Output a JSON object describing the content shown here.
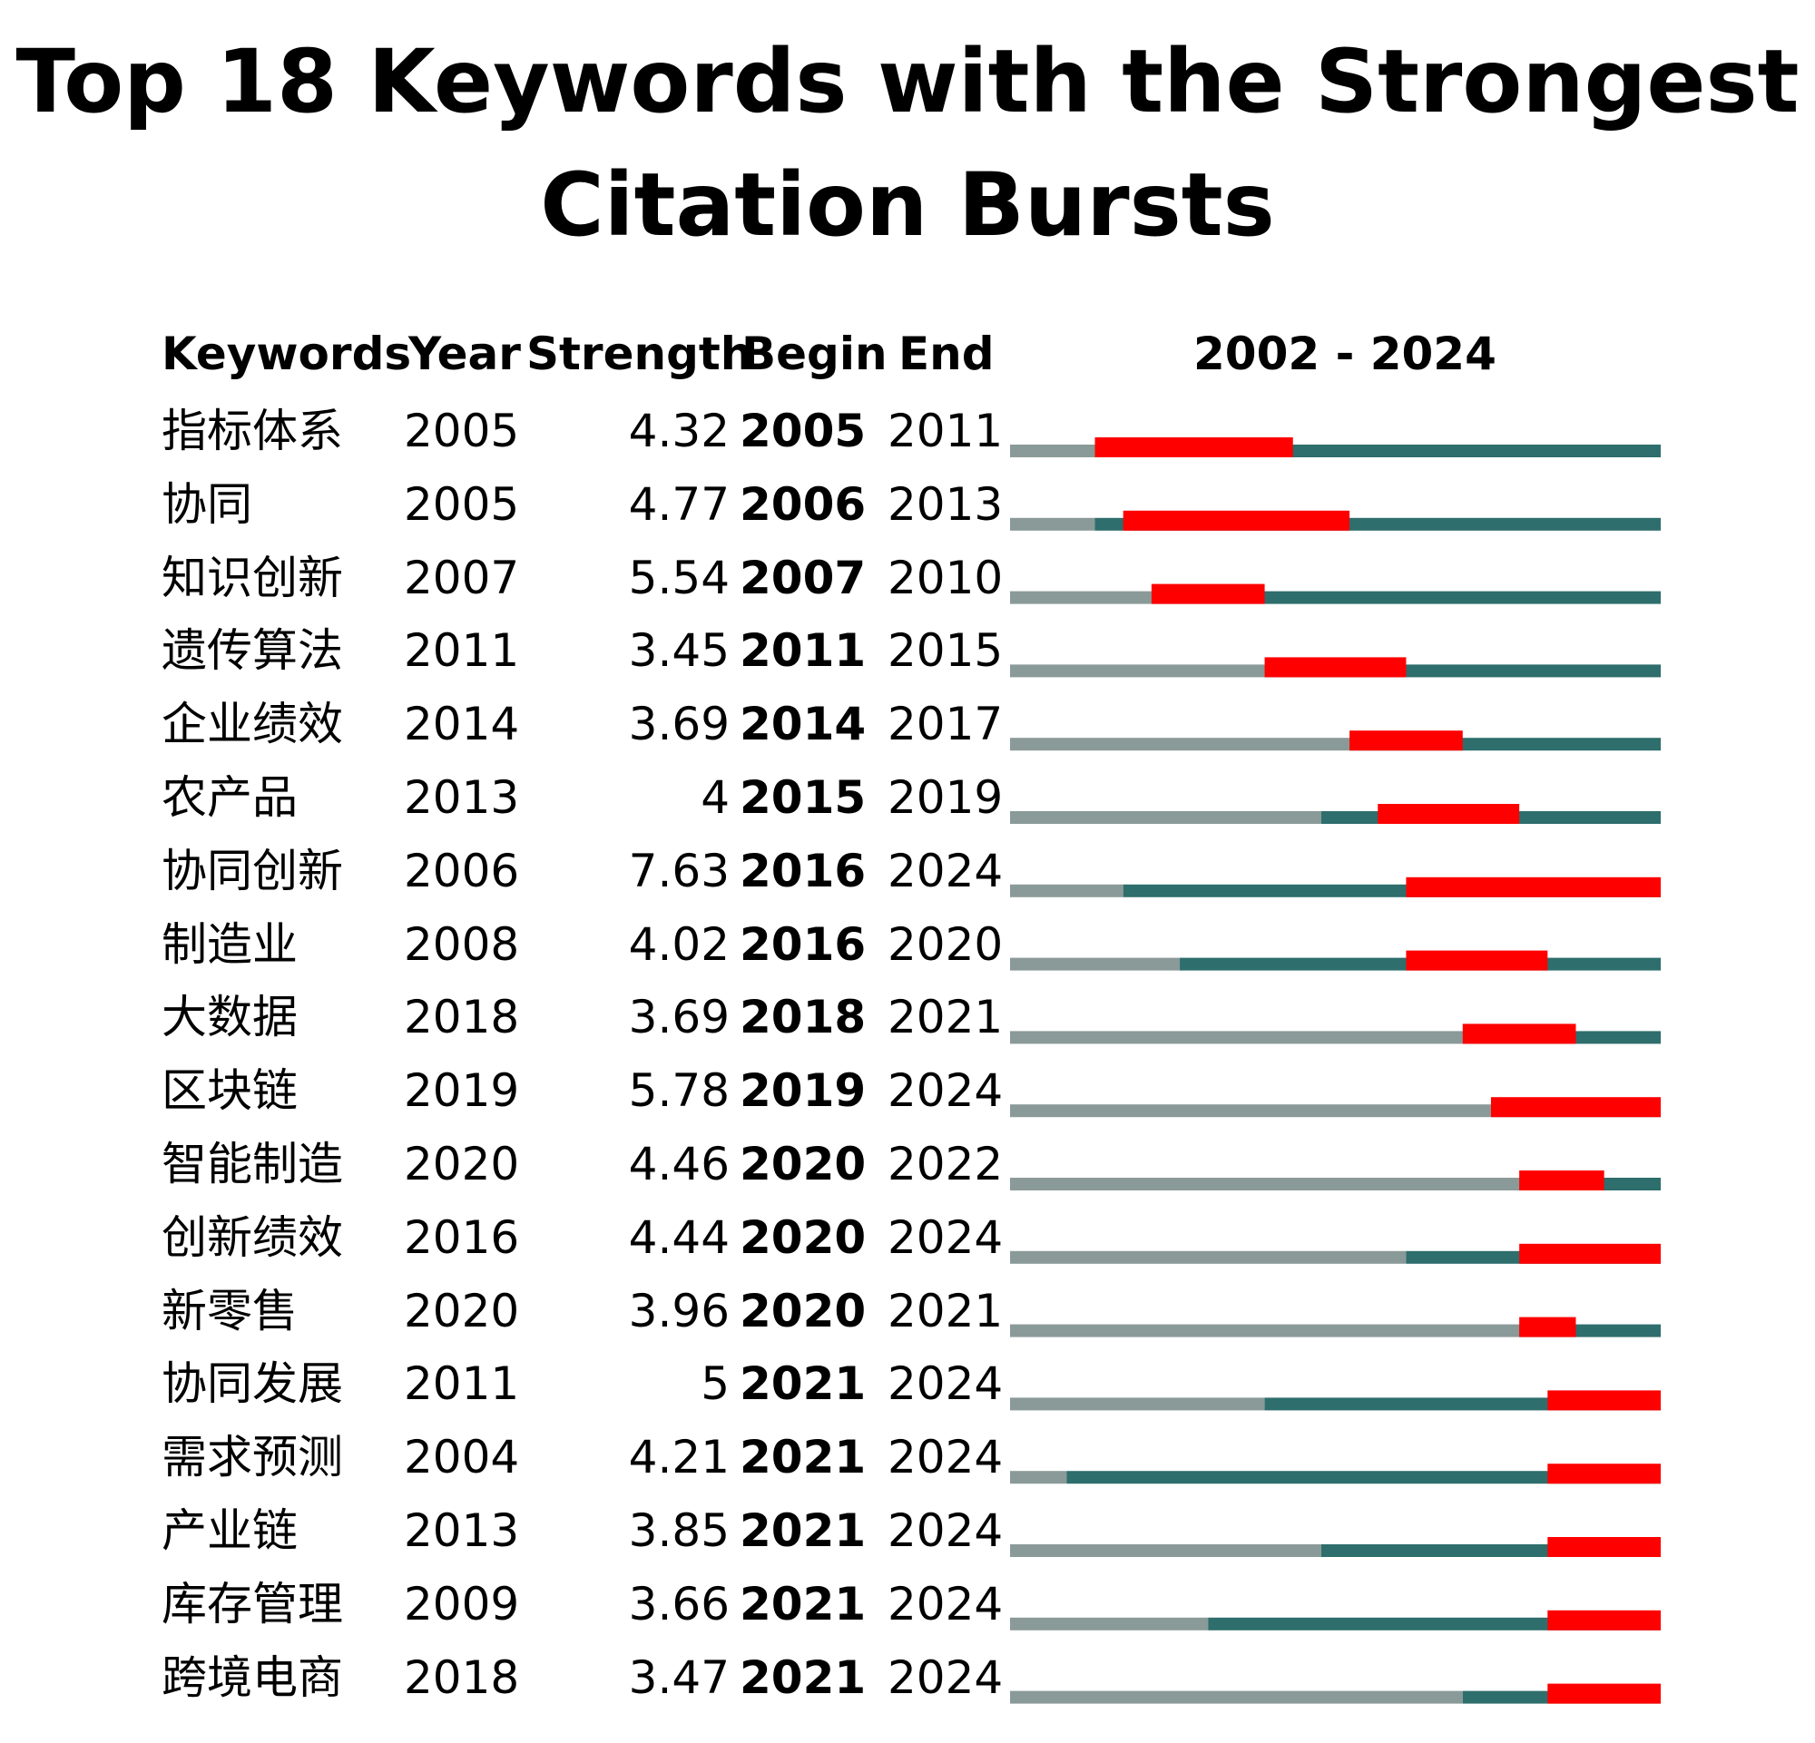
{
  "chart_data": {
    "type": "table",
    "title": "Top 18 Keywords with the Strongest Citation Bursts",
    "columns": [
      "Keywords",
      "Year",
      "Strength",
      "Begin",
      "End",
      "2002 - 2024"
    ],
    "timeline_range": [
      2002,
      2024
    ],
    "colors": {
      "before": "#8a9a98",
      "active": "#2e6e6c",
      "burst": "#ff0000"
    },
    "rows": [
      {
        "keyword": "指标体系",
        "year": "2005",
        "strength": "4.32",
        "begin": "2005",
        "end": "2011"
      },
      {
        "keyword": "协同",
        "year": "2005",
        "strength": "4.77",
        "begin": "2006",
        "end": "2013"
      },
      {
        "keyword": "知识创新",
        "year": "2007",
        "strength": "5.54",
        "begin": "2007",
        "end": "2010"
      },
      {
        "keyword": "遗传算法",
        "year": "2011",
        "strength": "3.45",
        "begin": "2011",
        "end": "2015"
      },
      {
        "keyword": "企业绩效",
        "year": "2014",
        "strength": "3.69",
        "begin": "2014",
        "end": "2017"
      },
      {
        "keyword": "农产品",
        "year": "2013",
        "strength": "4",
        "begin": "2015",
        "end": "2019"
      },
      {
        "keyword": "协同创新",
        "year": "2006",
        "strength": "7.63",
        "begin": "2016",
        "end": "2024"
      },
      {
        "keyword": "制造业",
        "year": "2008",
        "strength": "4.02",
        "begin": "2016",
        "end": "2020"
      },
      {
        "keyword": "大数据",
        "year": "2018",
        "strength": "3.69",
        "begin": "2018",
        "end": "2021"
      },
      {
        "keyword": "区块链",
        "year": "2019",
        "strength": "5.78",
        "begin": "2019",
        "end": "2024"
      },
      {
        "keyword": "智能制造",
        "year": "2020",
        "strength": "4.46",
        "begin": "2020",
        "end": "2022"
      },
      {
        "keyword": "创新绩效",
        "year": "2016",
        "strength": "4.44",
        "begin": "2020",
        "end": "2024"
      },
      {
        "keyword": "新零售",
        "year": "2020",
        "strength": "3.96",
        "begin": "2020",
        "end": "2021"
      },
      {
        "keyword": "协同发展",
        "year": "2011",
        "strength": "5",
        "begin": "2021",
        "end": "2024"
      },
      {
        "keyword": "需求预测",
        "year": "2004",
        "strength": "4.21",
        "begin": "2021",
        "end": "2024"
      },
      {
        "keyword": "产业链",
        "year": "2013",
        "strength": "3.85",
        "begin": "2021",
        "end": "2024"
      },
      {
        "keyword": "库存管理",
        "year": "2009",
        "strength": "3.66",
        "begin": "2021",
        "end": "2024"
      },
      {
        "keyword": "跨境电商",
        "year": "2018",
        "strength": "3.47",
        "begin": "2021",
        "end": "2024"
      }
    ]
  }
}
